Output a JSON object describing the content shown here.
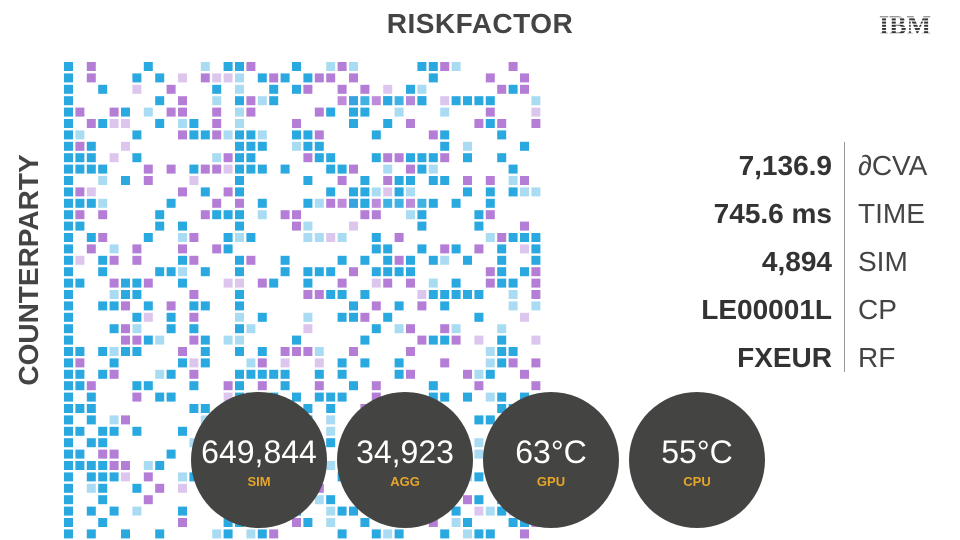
{
  "header": {
    "title": "RISKFACTOR",
    "logo_text": "IBM"
  },
  "axis": {
    "y_label": "COUNTERPARTY"
  },
  "colors": {
    "blue": "#2aa8e0",
    "light_blue": "#a9dcf2",
    "purple": "#b57ed6",
    "lavender": "#dcc6ee",
    "bubble": "#444442",
    "bubble_label": "#e6a52b"
  },
  "stats": [
    {
      "value": "7,136.9",
      "label": "∂CVA"
    },
    {
      "value": "745.6 ms",
      "label": "TIME"
    },
    {
      "value": "4,894",
      "label": "SIM"
    },
    {
      "value": "LE00001L",
      "label": "CP"
    },
    {
      "value": "FXEUR",
      "label": "RF"
    }
  ],
  "bubbles": [
    {
      "value": "649,844",
      "label": "SIM"
    },
    {
      "value": "34,923",
      "label": "AGG"
    },
    {
      "value": "63°C",
      "label": "GPU"
    },
    {
      "value": "55°C",
      "label": "CPU"
    }
  ]
}
